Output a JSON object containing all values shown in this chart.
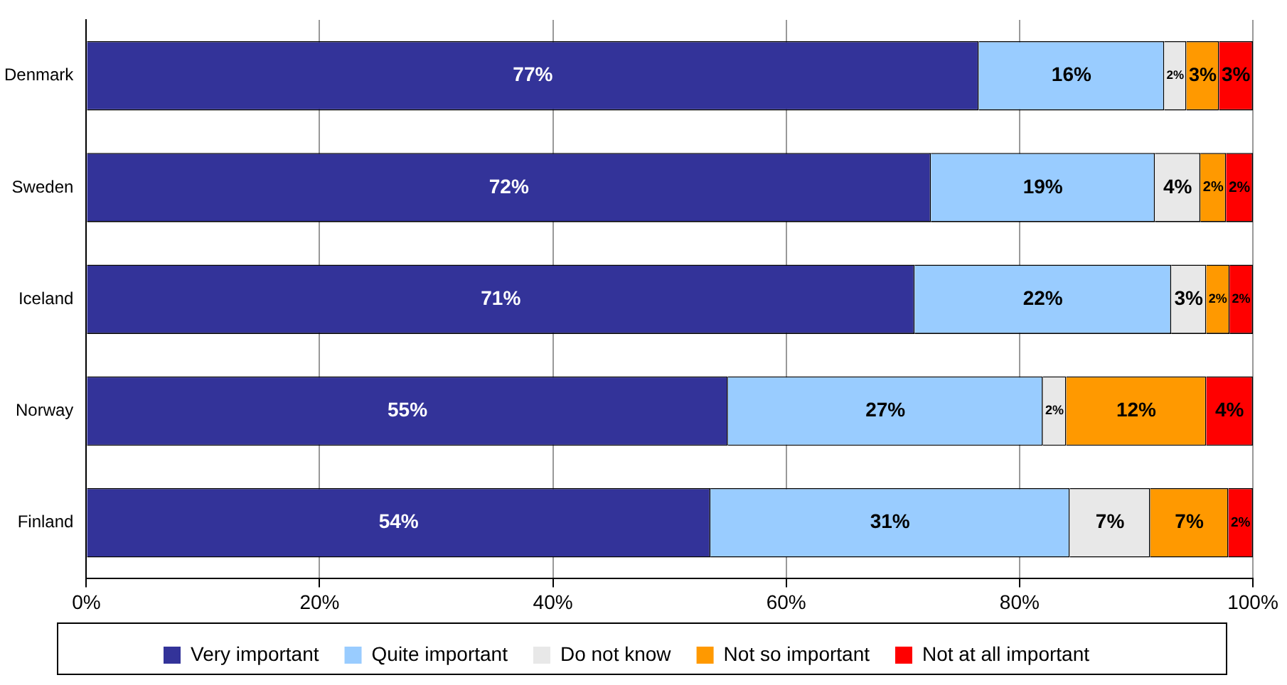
{
  "chart_data": {
    "type": "bar",
    "orientation": "horizontal",
    "stacked": true,
    "categories": [
      "Denmark",
      "Sweden",
      "Iceland",
      "Norway",
      "Finland"
    ],
    "series": [
      {
        "name": "Very important",
        "color": "#333399",
        "values": [
          76.5,
          72.4,
          71,
          55,
          53.5
        ],
        "value_labels": [
          "77%",
          "72%",
          "71%",
          "55%",
          "54%"
        ]
      },
      {
        "name": "Quite important",
        "color": "#99ccff",
        "values": [
          15.9,
          19.2,
          22,
          27,
          30.8
        ],
        "value_labels": [
          "16%",
          "19%",
          "22%",
          "27%",
          "31%"
        ]
      },
      {
        "name": "Do not know",
        "color": "#e8e8e8",
        "values": [
          1.9,
          3.9,
          3,
          2,
          6.9
        ],
        "value_labels": [
          "2%",
          "4%",
          "3%",
          "2%",
          "7%"
        ]
      },
      {
        "name": "Not so important",
        "color": "#ff9900",
        "values": [
          2.8,
          2.2,
          2,
          12,
          6.7
        ],
        "value_labels": [
          "3%",
          "2%",
          "2%",
          "12%",
          "7%"
        ]
      },
      {
        "name": "Not at all important",
        "color": "#ff0000",
        "values": [
          2.9,
          2.3,
          2,
          4,
          2.1
        ],
        "value_labels": [
          "3%",
          "2%",
          "2%",
          "4%",
          "2%"
        ]
      }
    ],
    "xlim": [
      0,
      100
    ],
    "xticks": [
      {
        "value": 0,
        "label": "0%"
      },
      {
        "value": 20,
        "label": "20%"
      },
      {
        "value": 40,
        "label": "40%"
      },
      {
        "value": 60,
        "label": "60%"
      },
      {
        "value": 80,
        "label": "80%"
      },
      {
        "value": 100,
        "label": "100%"
      }
    ],
    "grid": "x",
    "legend": "bottom"
  }
}
